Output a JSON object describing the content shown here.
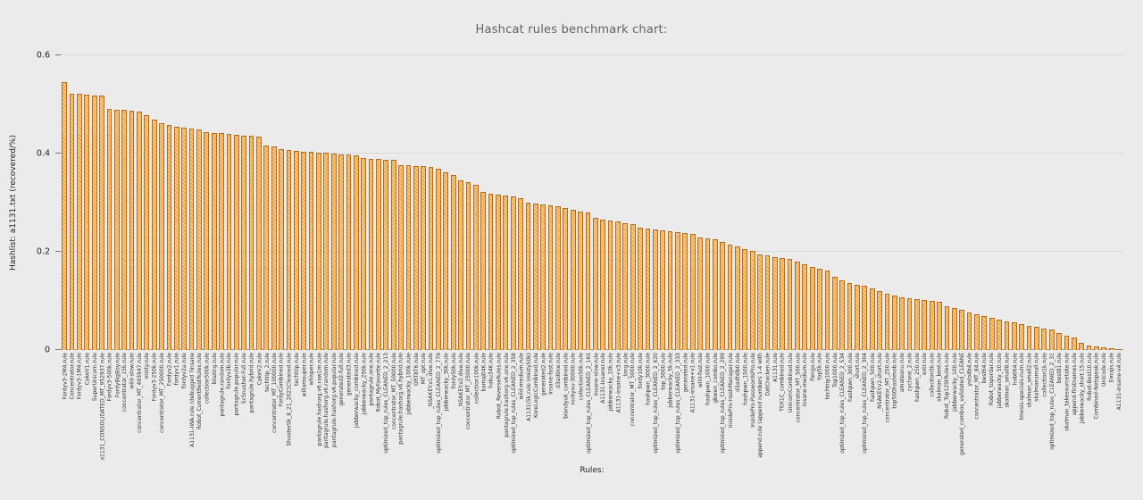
{
  "chart_data": {
    "type": "bar",
    "title": "Hashcat rules benchmark chart:",
    "xlabel": "Rules:",
    "ylabel": "Hashlist: a1131.txt  (recovered/%)",
    "ylim": [
      0,
      0.6
    ],
    "yticks": [
      0,
      0.2,
      0.4,
      0.6
    ],
    "ytick_labels": [
      "0",
      "0.2",
      "0.4",
      "0.6"
    ],
    "grid": true,
    "legend": "none",
    "bar_color": "#ef9a33",
    "bar_border_color": "#b26d20",
    "background_color": "#ebebeb",
    "categories": [
      "Fordyv3-2M4.rule",
      "Concentrator.rule",
      "Fordyv3-1M4.rule",
      "CakeV1.rule",
      "SuperUnicorn.rule",
      "a1131_CONSOLIDATED_MT_952937.rule",
      "Fordyv3-500k.rule",
      "FordyBigBoy.rule",
      "concentrator_15k.rule",
      "wild-slow.rule",
      "concentrator_MT_493947.rule",
      "misty.rule",
      "Fordyv3-250k.rule",
      "concentrator_MT_250000.rule",
      "Fordyv2.rule",
      "fordyv1.rule",
      "fordyv2a.rule",
      "A1131-IWA.rule (debugged ?insane",
      "Robot_CurrentBestRules.rule",
      "collection500k.rule",
      "blazing.rule",
      "pantagrule.random.rule",
      "fordyv2b.rule",
      "pantagrule.popular.rule",
      "ScSnusher-Full.rule",
      "pantagrule.hybrid.rule",
      "CakeV2.rule",
      "techtrip_2.rule",
      "concentrator_MT_100000.rule",
      "FordyCombined.rule",
      "ShooterSk_8_21_2021Cleaned.rule",
      "techtrip.rule",
      "willamsuper.rule",
      "whisper.rule",
      "pantagrule.hashorg.v6.raw1m.rule",
      "pantagrule.hashorg.v6.random.rule",
      "pantagrule.hashorg.v6.popular.rule",
      "generated2-full.rule",
      "generated3.rule",
      "jabberwacky_combined.rule",
      "jabberwacky_250k.rule",
      "pantagrule.one.rule",
      "Robot_MyFavorite.rule",
      "optimized_top_rules_CLEANED_2_213",
      "concentrator_MT_50000.rule",
      "pantagrule.hashorg.v6.hybrid.rule",
      "jabberwacky_100k.rule",
      "ORT8T6.rule",
      "MT_opt.rule",
      "_NSAKEY.v1.dive.rule",
      "optimized_top_rules_CLEANED_2_779",
      "jabberwacky_30k.rule",
      "fordy50k.rule",
      "_NSAKEY.v2.dive.rule",
      "concentrator_MT_25000.rule",
      "collection100k.rule",
      "kamaj04K.rule",
      "haku34K.rule",
      "Robot_ReverseRules.rule",
      "pantagrule.hashorg.v6.one.rule",
      "optimized_top_rules_CLEANED_2_358",
      "wild-medium.rule",
      "A1131(5k.rule (misty50k)",
      "KoreLogicCombined.rule",
      "generated2.rule",
      "insane-fast.rule",
      "d3ad0ne.rule",
      "blandyuk_combined.rule",
      "rockyou-30000.rule",
      "collection50k.rule",
      "optimized_top_rules_CLEANED_2_165",
      "insane-slow.rule",
      "A1131-insaner.rule",
      "jabberwacky_10k.rule",
      "A1131-insane+v3.rule",
      "_long.rule",
      "concentrator_MT_5000.rule",
      "fordy10k.rule",
      "hashpwn_3000.rule",
      "optimized_top_rules_CLEANED_2_620",
      "top_5000.rule",
      "jabberwacky_5k.rule",
      "optimized_top_rules_CLEANED_2_333",
      "generated.rule",
      "A1131-insane+v1.rule",
      "wild-fast.rule",
      "hashpwn_1000.rule",
      "gbwen_combo.rule",
      "optimized_top_rules_CLEANED_2_299",
      "InsidePro-HashManager.rule",
      "d3adh0b0.rule",
      "hashpwn_1500.rule",
      "InsidePro-PasswordsPro.rule",
      "append.rule (append numbers 1-4 with",
      "DatCracken.rule",
      "A1131.rule",
      "T0X1C_combined.rule",
      "UnicornCombined.rule",
      "concentrator_MT_500.rule",
      "insane-medium.rule",
      "Pengo.rule",
      "top5k.rule",
      "techtrip1000.rule",
      "Top1000.rule",
      "optimized_top_rules_CLEANED_2_534",
      "hashpwn_300.rule",
      "_short.rule",
      "optimized_top_rules_CLEANED_2_304",
      "hashpwn_500.rule",
      "_NSAKEY.v2.short.rule",
      "concentrator_MT_250.rule",
      "top500hashmob.rule",
      "amateanu.rule",
      "cyclone_2.rule",
      "hashpwn_250.rule",
      "extr.rule",
      "collection5k.rule",
      "skalman_best.rule",
      "Robot_Top12StRules.rule",
      "jabberwacky_100.rule",
      "generated_combos_validated_CLEANE",
      "yolo4b4.rule",
      "concentrator_MT_84.rule",
      "best64.rule",
      "Robot_topordar.rule",
      "jabberwacky_50.rule",
      "skalman_small8.rule",
      "hob064.rule",
      "tmesis-specials-num.rule",
      "skalman_small2.rule",
      "skalmansmall.rule",
      "collection1k.rule",
      "optimized_top_rules_CLEANED_2_31",
      "best81.rule",
      "skalman_takesourcetake.rule",
      "append-firstnames.rule",
      "jabberwacky_short.15.rule",
      "Robot-Best10.rule",
      "Combined-Netspeak.rule",
      "Unicode.rule",
      "Emojis.rule",
      "A1131-insane-v4.rule"
    ],
    "values": [
      0.545,
      0.522,
      0.521,
      0.52,
      0.519,
      0.518,
      0.491,
      0.49,
      0.489,
      0.487,
      0.486,
      0.479,
      0.47,
      0.462,
      0.458,
      0.455,
      0.453,
      0.451,
      0.45,
      0.443,
      0.442,
      0.441,
      0.44,
      0.438,
      0.437,
      0.436,
      0.434,
      0.416,
      0.414,
      0.41,
      0.408,
      0.406,
      0.404,
      0.403,
      0.402,
      0.401,
      0.4,
      0.399,
      0.398,
      0.397,
      0.391,
      0.39,
      0.389,
      0.388,
      0.387,
      0.377,
      0.376,
      0.375,
      0.374,
      0.372,
      0.37,
      0.361,
      0.356,
      0.346,
      0.341,
      0.337,
      0.321,
      0.318,
      0.316,
      0.314,
      0.312,
      0.31,
      0.3,
      0.298,
      0.296,
      0.294,
      0.292,
      0.29,
      0.285,
      0.282,
      0.28,
      0.27,
      0.266,
      0.263,
      0.261,
      0.259,
      0.257,
      0.25,
      0.248,
      0.246,
      0.244,
      0.242,
      0.24,
      0.238,
      0.236,
      0.23,
      0.228,
      0.226,
      0.22,
      0.215,
      0.211,
      0.206,
      0.201,
      0.195,
      0.192,
      0.19,
      0.188,
      0.186,
      0.18,
      0.175,
      0.17,
      0.165,
      0.161,
      0.15,
      0.141,
      0.136,
      0.133,
      0.131,
      0.125,
      0.12,
      0.115,
      0.111,
      0.108,
      0.106,
      0.104,
      0.102,
      0.1,
      0.098,
      0.09,
      0.085,
      0.081,
      0.076,
      0.072,
      0.07,
      0.065,
      0.062,
      0.059,
      0.056,
      0.053,
      0.05,
      0.047,
      0.044,
      0.041,
      0.035,
      0.03,
      0.026,
      0.015,
      0.01,
      0.007,
      0.005,
      0.003,
      0.002
    ]
  }
}
